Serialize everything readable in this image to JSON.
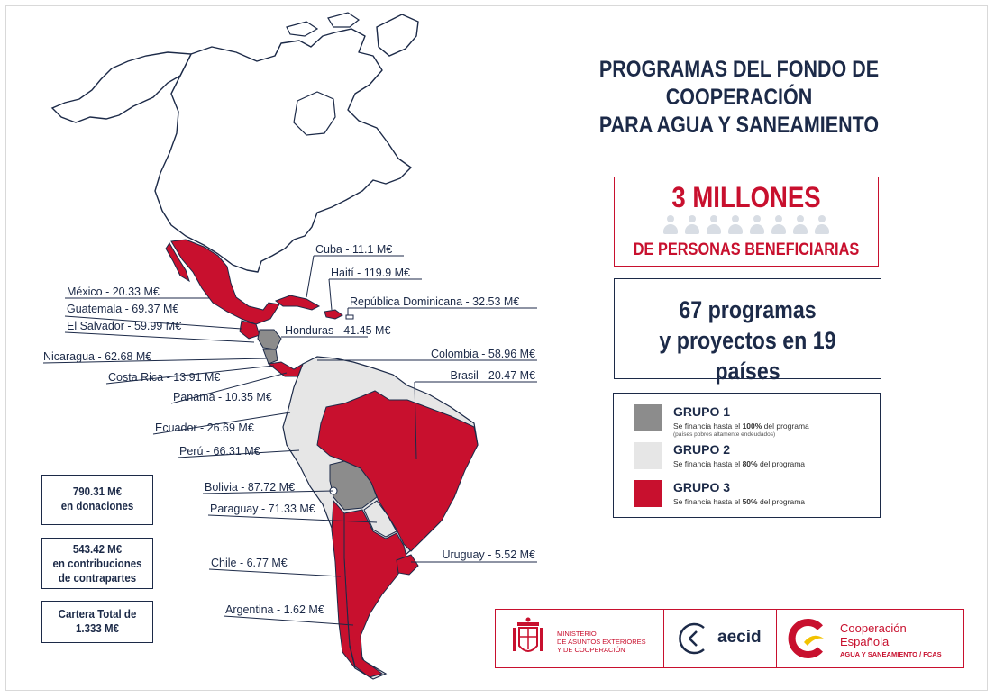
{
  "title": {
    "line1": "PROGRAMAS DEL FONDO DE COOPERACIÓN",
    "line2": "PARA AGUA Y SANEAMIENTO"
  },
  "beneficiaries": {
    "headline": "3 MILLONES",
    "subline": "DE PERSONAS BENEFICIARIAS",
    "people_icon": "person-icon"
  },
  "programs": {
    "line1": "67 programas",
    "line2": "y proyectos en 19 países"
  },
  "legend": {
    "groups": [
      {
        "title": "GRUPO 1",
        "desc_pre": "Se financia hasta el ",
        "desc_pct": "100%",
        "desc_post": " del programa",
        "note": "(países pobres altamente endeudados)",
        "color": "#8c8c8c"
      },
      {
        "title": "GRUPO 2",
        "desc_pre": "Se financia hasta el ",
        "desc_pct": "80%",
        "desc_post": " del programa",
        "note": "",
        "color": "#e6e6e6"
      },
      {
        "title": "GRUPO 3",
        "desc_pre": "Se financia hasta el ",
        "desc_pct": "50%",
        "desc_post": " del programa",
        "note": "",
        "color": "#c8102e"
      }
    ]
  },
  "stats": {
    "donations_amount": "790.31 M€",
    "donations_label": "en donaciones",
    "counterpart_amount": "543.42 M€",
    "counterpart_label1": "en contribuciones",
    "counterpart_label2": "de contrapartes",
    "total_label": "Cartera Total de",
    "total_amount": "1.333 M€"
  },
  "map": {
    "colors": {
      "group1": "#8c8c8c",
      "group2": "#e6e6e6",
      "group3": "#c8102e",
      "outline": "#1c2a48"
    },
    "countries": [
      {
        "id": "mexico",
        "label": "México - 20.33 M€"
      },
      {
        "id": "guatemala",
        "label": "Guatemala - 69.37 M€"
      },
      {
        "id": "el-salvador",
        "label": "El Salvador - 59.99 M€"
      },
      {
        "id": "nicaragua",
        "label": "Nicaragua - 62.68 M€"
      },
      {
        "id": "costa-rica",
        "label": "Costa Rica - 13.91 M€"
      },
      {
        "id": "panama",
        "label": "Panamá - 10.35 M€"
      },
      {
        "id": "ecuador",
        "label": "Ecuador - 26.69 M€"
      },
      {
        "id": "peru",
        "label": "Perú - 66.31 M€"
      },
      {
        "id": "bolivia",
        "label": "Bolivia - 87.72 M€"
      },
      {
        "id": "paraguay",
        "label": "Paraguay - 71.33 M€"
      },
      {
        "id": "chile",
        "label": "Chile - 6.77 M€"
      },
      {
        "id": "argentina",
        "label": "Argentina - 1.62 M€"
      },
      {
        "id": "cuba",
        "label": "Cuba - 11.1 M€"
      },
      {
        "id": "haiti",
        "label": "Haití - 119.9 M€"
      },
      {
        "id": "dominicana",
        "label": "República Dominicana - 32.53 M€"
      },
      {
        "id": "honduras",
        "label": "Honduras - 41.45 M€"
      },
      {
        "id": "colombia",
        "label": "Colombia - 58.96 M€"
      },
      {
        "id": "brasil",
        "label": "Brasil - 20.47 M€"
      },
      {
        "id": "uruguay",
        "label": "Uruguay - 5.52 M€"
      }
    ]
  },
  "logos": {
    "ministry_line1": "MINISTERIO",
    "ministry_line2": "DE ASUNTOS EXTERIORES",
    "ministry_line3": "Y DE COOPERACIÓN",
    "aecid": "aecid",
    "coop_line1": "Cooperación",
    "coop_line2": "Española",
    "coop_line3": "AGUA Y SANEAMIENTO / FCAS"
  }
}
